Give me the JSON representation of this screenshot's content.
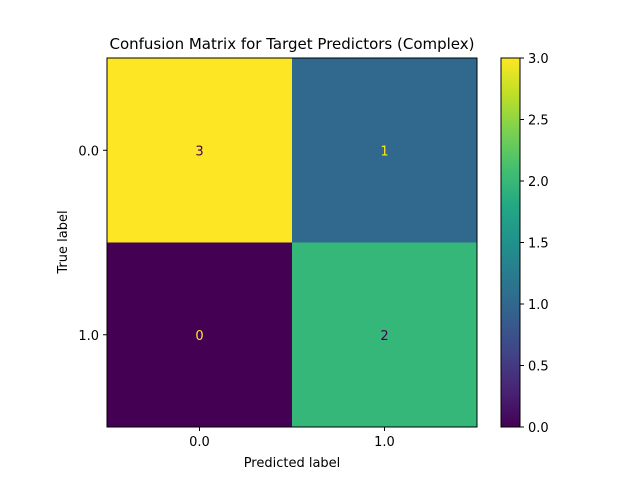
{
  "chart_data": {
    "type": "heatmap",
    "title": "Confusion Matrix for Target Predictors (Complex)",
    "xlabel": "Predicted label",
    "ylabel": "True label",
    "x_categories": [
      "0.0",
      "1.0"
    ],
    "y_categories": [
      "0.0",
      "1.0"
    ],
    "matrix": [
      [
        3,
        1
      ],
      [
        0,
        2
      ]
    ],
    "colormap": "viridis",
    "colorbar": {
      "range": [
        0.0,
        3.0
      ],
      "ticks": [
        "0.0",
        "0.5",
        "1.0",
        "1.5",
        "2.0",
        "2.5",
        "3.0"
      ]
    },
    "cell_colors": [
      [
        "#fde725",
        "#31688e"
      ],
      [
        "#440154",
        "#35b779"
      ]
    ],
    "text_colors": [
      [
        "#440154",
        "#fde725"
      ],
      [
        "#fde725",
        "#440154"
      ]
    ]
  }
}
